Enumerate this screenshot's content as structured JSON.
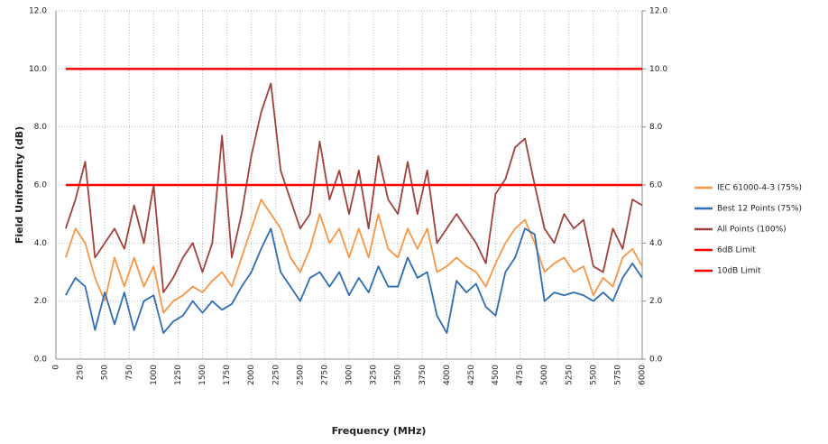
{
  "chart_data": {
    "type": "line",
    "y_label": "Field Uniformity (dB)",
    "x_label": "Frequency (MHz)",
    "x": [
      100,
      200,
      300,
      400,
      500,
      600,
      700,
      800,
      900,
      1000,
      1100,
      1200,
      1300,
      1400,
      1500,
      1600,
      1700,
      1800,
      1900,
      2000,
      2100,
      2200,
      2300,
      2400,
      2500,
      2600,
      2700,
      2800,
      2900,
      3000,
      3100,
      3200,
      3300,
      3400,
      3500,
      3600,
      3700,
      3800,
      3900,
      4000,
      4100,
      4200,
      4300,
      4400,
      4500,
      4600,
      4700,
      4800,
      4900,
      5000,
      5100,
      5200,
      5300,
      5400,
      5500,
      5600,
      5700,
      5800,
      5900,
      6000
    ],
    "series": [
      {
        "name": "IEC 61000-4-3 (75%)",
        "color": "#f79646",
        "values": [
          3.5,
          4.5,
          4.0,
          2.8,
          2.0,
          3.5,
          2.5,
          3.5,
          2.5,
          3.2,
          1.6,
          2.0,
          2.2,
          2.5,
          2.3,
          2.7,
          3.0,
          2.5,
          3.5,
          4.5,
          5.5,
          5.0,
          4.5,
          3.5,
          3.0,
          3.8,
          5.0,
          4.0,
          4.5,
          3.5,
          4.5,
          3.5,
          5.0,
          3.8,
          3.5,
          4.5,
          3.8,
          4.5,
          3.0,
          3.2,
          3.5,
          3.2,
          3.0,
          2.5,
          3.3,
          4.0,
          4.5,
          4.8,
          4.0,
          3.0,
          3.3,
          3.5,
          3.0,
          3.2,
          2.2,
          2.8,
          2.5,
          3.5,
          3.8,
          3.2
        ]
      },
      {
        "name": "Best 12 Points (75%)",
        "color": "#2e6db4",
        "values": [
          2.2,
          2.8,
          2.5,
          1.0,
          2.3,
          1.2,
          2.3,
          1.0,
          2.0,
          2.2,
          0.9,
          1.3,
          1.5,
          2.0,
          1.6,
          2.0,
          1.7,
          1.9,
          2.5,
          3.0,
          3.8,
          4.5,
          3.0,
          2.5,
          2.0,
          2.8,
          3.0,
          2.5,
          3.0,
          2.2,
          2.8,
          2.3,
          3.2,
          2.5,
          2.5,
          3.5,
          2.8,
          3.0,
          1.5,
          0.9,
          2.7,
          2.3,
          2.6,
          1.8,
          1.5,
          3.0,
          3.5,
          4.5,
          4.3,
          2.0,
          2.3,
          2.2,
          2.3,
          2.2,
          2.0,
          2.3,
          2.0,
          2.8,
          3.3,
          2.8
        ]
      },
      {
        "name": "All Points (100%)",
        "color": "#a0413c",
        "values": [
          4.5,
          5.5,
          6.8,
          3.5,
          4.0,
          4.5,
          3.8,
          5.3,
          4.0,
          6.0,
          2.3,
          2.8,
          3.5,
          4.0,
          3.0,
          4.0,
          7.7,
          3.5,
          5.0,
          7.0,
          8.5,
          9.5,
          6.5,
          5.5,
          4.5,
          5.0,
          7.5,
          5.5,
          6.5,
          5.0,
          6.5,
          4.5,
          7.0,
          5.5,
          5.0,
          6.8,
          5.0,
          6.5,
          4.0,
          4.5,
          5.0,
          4.5,
          4.0,
          3.3,
          5.7,
          6.2,
          7.3,
          7.6,
          6.0,
          4.5,
          4.0,
          5.0,
          4.5,
          4.8,
          3.2,
          3.0,
          4.5,
          3.8,
          5.5,
          5.3
        ]
      },
      {
        "name": "6dB Limit",
        "color": "#ff0000",
        "x": [
          100,
          6000
        ],
        "values": [
          6,
          6
        ]
      },
      {
        "name": "10dB Limit",
        "color": "#ff0000",
        "x": [
          100,
          6000
        ],
        "values": [
          10,
          10
        ]
      }
    ],
    "xlim": [
      0,
      6000
    ],
    "xticks": [
      0,
      250,
      500,
      750,
      1000,
      1250,
      1500,
      1750,
      2000,
      2250,
      2500,
      2750,
      3000,
      3250,
      3500,
      3750,
      4000,
      4250,
      4500,
      4750,
      5000,
      5250,
      5500,
      5750,
      6000
    ],
    "ylim": [
      0,
      12
    ],
    "yticks": [
      {
        "value": 0,
        "label": "0.0"
      },
      {
        "value": 2,
        "label": "2.0"
      },
      {
        "value": 4,
        "label": "4.0"
      },
      {
        "value": 6,
        "label": "6.0"
      },
      {
        "value": 8,
        "label": "8.0"
      },
      {
        "value": 10,
        "label": "10.0"
      },
      {
        "value": 12,
        "label": "12.0"
      }
    ],
    "y2lim": [
      0,
      12
    ],
    "y2ticks": [
      {
        "value": 0,
        "label": "0.0"
      },
      {
        "value": 2,
        "label": "2.0"
      },
      {
        "value": 4,
        "label": "4.0"
      },
      {
        "value": 6,
        "label": "6.0"
      },
      {
        "value": 8,
        "label": "8.0"
      },
      {
        "value": 10,
        "label": "10.0"
      },
      {
        "value": 12,
        "label": "12.0"
      }
    ],
    "grid": true,
    "legend": "right"
  }
}
